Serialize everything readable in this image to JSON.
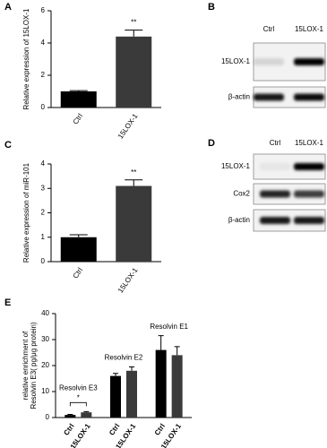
{
  "chart_data": [
    {
      "type": "bar",
      "panel": "A",
      "ylabel": "Relative expression of 15LOX-1",
      "categories": [
        "Ctrl",
        "15LOX-1"
      ],
      "values": [
        1.0,
        4.4
      ],
      "errors": [
        0.05,
        0.4
      ],
      "colors": [
        "#000000",
        "#3a3a3a"
      ],
      "ylim": [
        0,
        6
      ],
      "yticks": [
        0,
        2,
        4,
        6
      ],
      "annotation": "**"
    },
    {
      "type": "bar",
      "panel": "C",
      "ylabel": "Relative expression of miR-101",
      "categories": [
        "Ctrl",
        "15LOX-1"
      ],
      "values": [
        1.0,
        3.1
      ],
      "errors": [
        0.1,
        0.25
      ],
      "colors": [
        "#000000",
        "#3a3a3a"
      ],
      "ylim": [
        0,
        4
      ],
      "yticks": [
        0,
        1,
        2,
        3,
        4
      ],
      "annotation": "**"
    },
    {
      "type": "grouped_bar",
      "panel": "E",
      "ylabel": [
        "relative enrichment of",
        "Resolvin E3( pg/μg protein)"
      ],
      "colors": [
        "#000000",
        "#3a3a3a"
      ],
      "ylim": [
        0,
        40
      ],
      "yticks": [
        0,
        10,
        20,
        30,
        40
      ],
      "annotation": "*",
      "groups": [
        {
          "name": "Resolvin E3",
          "categories": [
            "Ctrl",
            "15LOX-1"
          ],
          "values": [
            1,
            2
          ],
          "errors": [
            0.2,
            0.3
          ]
        },
        {
          "name": "Resolvin E2",
          "categories": [
            "Ctrl",
            "15LOX-1"
          ],
          "values": [
            16,
            18
          ],
          "errors": [
            1,
            1.5
          ]
        },
        {
          "name": "Resolvin E1",
          "categories": [
            "Ctrl",
            "15LOX-1"
          ],
          "values": [
            26,
            24
          ],
          "errors": [
            5.5,
            3.3
          ]
        }
      ]
    }
  ],
  "blots": [
    {
      "panel": "B",
      "lanes": [
        "Ctrl",
        "15LOX-1"
      ],
      "rows": [
        "15LOX-1",
        "β-actin"
      ]
    },
    {
      "panel": "D",
      "lanes": [
        "Ctrl",
        "15LOX-1"
      ],
      "rows": [
        "15LOX-1",
        "Cox2",
        "β-actin"
      ]
    }
  ]
}
